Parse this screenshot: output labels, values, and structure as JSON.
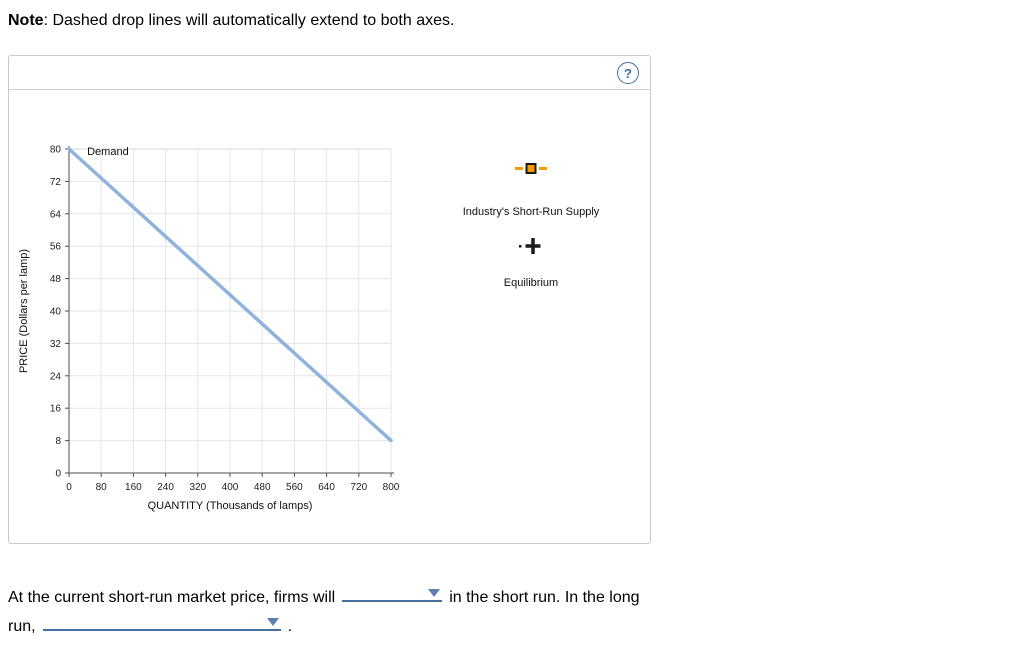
{
  "note": {
    "label": "Note",
    "text": ": Dashed drop lines will automatically extend to both axes."
  },
  "panel": {
    "help_label": "?"
  },
  "chart_data": {
    "type": "line",
    "title": "",
    "xlabel": "QUANTITY (Thousands of lamps)",
    "ylabel": "PRICE (Dollars per lamp)",
    "xlim": [
      0,
      800
    ],
    "ylim": [
      0,
      80
    ],
    "x_ticks": [
      0,
      80,
      160,
      240,
      320,
      400,
      480,
      560,
      640,
      720,
      800
    ],
    "y_ticks": [
      0,
      8,
      16,
      24,
      32,
      40,
      48,
      56,
      64,
      72,
      80
    ],
    "grid": true,
    "legend_position": "none",
    "series": [
      {
        "name": "Demand",
        "x": [
          0,
          800
        ],
        "y": [
          80,
          8
        ],
        "color": "#8fb3da",
        "label_pos": {
          "x": 45,
          "y": 79.5
        }
      }
    ]
  },
  "tools": [
    {
      "label": "Industry's Short-Run Supply",
      "icon": "supply-handle-icon",
      "color": "#f59b00"
    },
    {
      "label": "Equilibrium",
      "icon": "equilibrium-icon",
      "color": "#1a1a1a"
    }
  ],
  "question": {
    "line1_before": "At the current short-run market price, firms will",
    "line1_after": "in the short run. In the long",
    "line2_before": "run,",
    "line2_after": ".",
    "dropdown1_value": "",
    "dropdown2_value": ""
  },
  "colors": {
    "demand_line": "#8fb3da",
    "supply_accent": "#f59b00",
    "equilibrium": "#1a1a1a",
    "dropdown_accent": "#5b7fb0",
    "underline": "#4a70a0",
    "help_icon": "#3d6f9e"
  }
}
